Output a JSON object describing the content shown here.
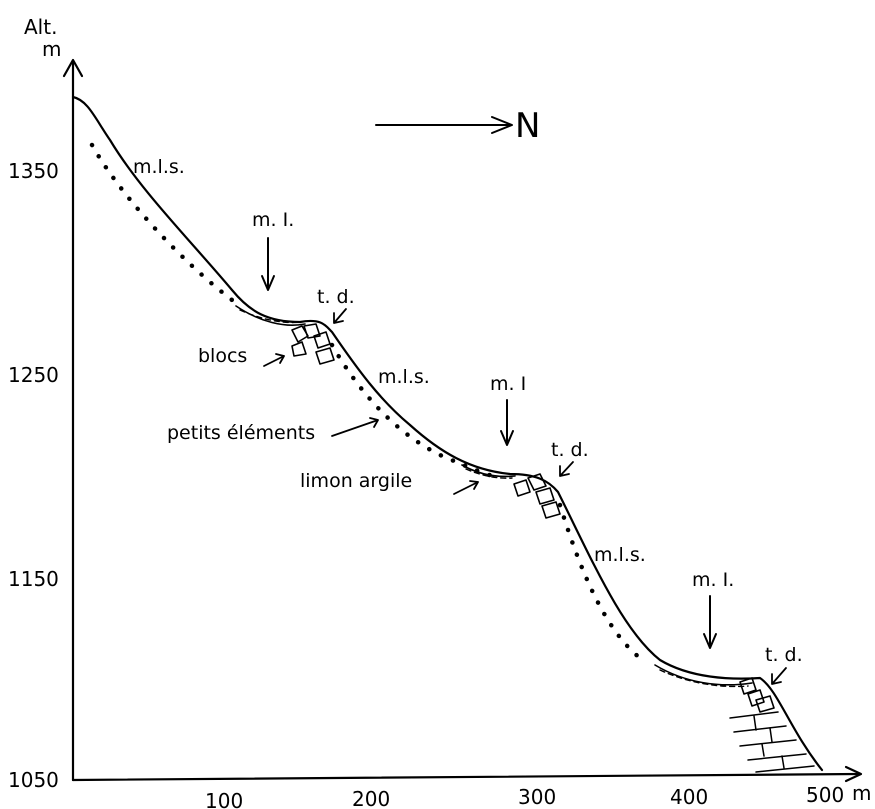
{
  "axes": {
    "y_title": "Alt.",
    "y_unit": "m",
    "x_unit": "m",
    "y_ticks": [
      "1350",
      "1250",
      "1150",
      "1050"
    ],
    "x_ticks": [
      "100",
      "200",
      "300",
      "400",
      "500"
    ]
  },
  "orientation": "N",
  "labels": {
    "mls_1": "m.l.s.",
    "mls_2": "m.l.s.",
    "mls_3": "m.l.s.",
    "mi_1": "m. I.",
    "mi_2": "m. I",
    "mi_3": "m. I.",
    "td_1": "t. d.",
    "td_2": "t. d.",
    "td_3": "t. d.",
    "blocs": "blocs",
    "petits_elements": "petits éléments",
    "limon_argile": "limon argile"
  }
}
